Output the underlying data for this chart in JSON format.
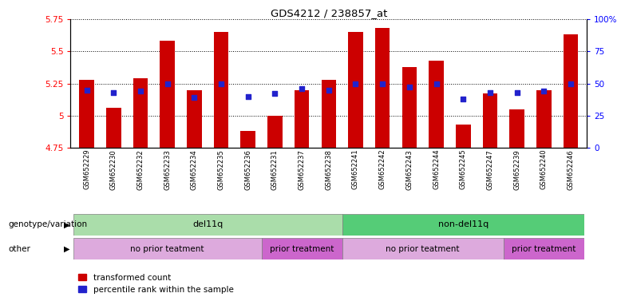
{
  "title": "GDS4212 / 238857_at",
  "samples": [
    "GSM652229",
    "GSM652230",
    "GSM652232",
    "GSM652233",
    "GSM652234",
    "GSM652235",
    "GSM652236",
    "GSM652231",
    "GSM652237",
    "GSM652238",
    "GSM652241",
    "GSM652242",
    "GSM652243",
    "GSM652244",
    "GSM652245",
    "GSM652247",
    "GSM652239",
    "GSM652240",
    "GSM652246"
  ],
  "bar_values": [
    5.28,
    5.06,
    5.29,
    5.58,
    5.2,
    5.65,
    4.88,
    5.0,
    5.2,
    5.28,
    5.65,
    5.68,
    5.38,
    5.43,
    4.93,
    5.17,
    5.05,
    5.2,
    5.63
  ],
  "dot_pct": [
    45,
    43,
    44,
    50,
    39,
    50,
    40,
    42,
    46,
    45,
    50,
    50,
    47,
    50,
    38,
    43,
    43,
    44,
    50
  ],
  "ylim_left": [
    4.75,
    5.75
  ],
  "yticks_left": [
    4.75,
    5.0,
    5.25,
    5.5,
    5.75
  ],
  "ytick_labels_left": [
    "4.75",
    "5",
    "5.25",
    "5.5",
    "5.75"
  ],
  "yticks_right": [
    0,
    25,
    50,
    75,
    100
  ],
  "ytick_labels_right": [
    "0",
    "25",
    "50",
    "75",
    "100%"
  ],
  "bar_color": "#cc0000",
  "dot_color": "#2222cc",
  "background_color": "#ffffff",
  "genotype_labels": [
    "del11q",
    "non-del11q"
  ],
  "genotype_colors": [
    "#aaddaa",
    "#55cc77"
  ],
  "other_labels": [
    "no prior teatment",
    "prior treatment",
    "no prior teatment",
    "prior treatment"
  ],
  "other_colors": [
    "#ddaadd",
    "#cc66cc",
    "#ddaadd",
    "#cc66cc"
  ],
  "genotype_split": 10,
  "other_splits": [
    0,
    7,
    10,
    16,
    19
  ],
  "n_samples": 19
}
